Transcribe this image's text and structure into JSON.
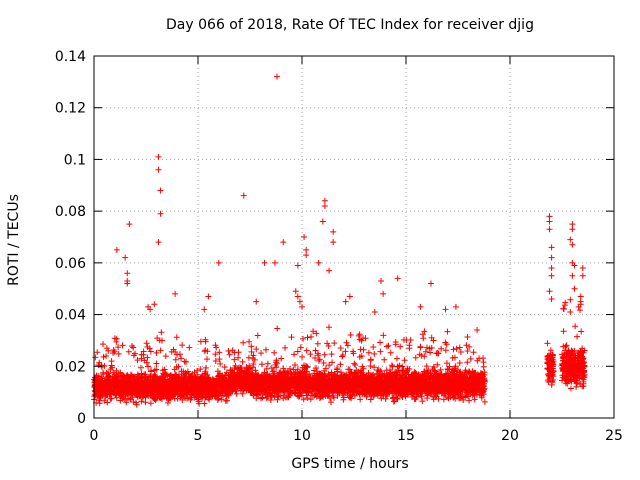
{
  "chart_data": {
    "type": "scatter",
    "title": "Day 066 of 2018, Rate Of TEC Index for receiver djig",
    "xlabel": "GPS time / hours",
    "ylabel": "ROTI / TECUs",
    "xlim": [
      0,
      25
    ],
    "ylim": [
      0,
      0.14
    ],
    "xticks": [
      0,
      5,
      10,
      15,
      20,
      25
    ],
    "yticks": [
      0,
      0.02,
      0.04,
      0.06,
      0.08,
      0.1,
      0.12,
      0.14
    ],
    "xtick_labels": [
      "0",
      "5",
      "10",
      "15",
      "20",
      "25"
    ],
    "ytick_labels": [
      "0",
      "0.02",
      "0.04",
      "0.06",
      "0.08",
      "0.1",
      "0.12",
      "0.14"
    ],
    "grid": true,
    "marker": "+",
    "color": "#ff0000",
    "series": [
      {
        "name": "ROTI",
        "segments": [
          {
            "x_range": [
              0.0,
              6.5
            ],
            "base": 0.012,
            "spread": 0.008
          },
          {
            "x_range": [
              6.5,
              7.5
            ],
            "base": 0.015,
            "spread": 0.007
          },
          {
            "x_range": [
              7.5,
              18.8
            ],
            "base": 0.013,
            "spread": 0.008
          },
          {
            "x_range": [
              21.8,
              22.1
            ],
            "base": 0.02,
            "spread": 0.01
          },
          {
            "x_range": [
              22.5,
              23.6
            ],
            "base": 0.02,
            "spread": 0.012
          }
        ],
        "outliers": [
          [
            8.8,
            0.132
          ],
          [
            3.1,
            0.101
          ],
          [
            3.1,
            0.096
          ],
          [
            3.2,
            0.088
          ],
          [
            3.2,
            0.079
          ],
          [
            7.2,
            0.086
          ],
          [
            3.1,
            0.068
          ],
          [
            1.7,
            0.075
          ],
          [
            1.1,
            0.065
          ],
          [
            1.5,
            0.062
          ],
          [
            1.6,
            0.056
          ],
          [
            1.6,
            0.053
          ],
          [
            1.6,
            0.052
          ],
          [
            6.0,
            0.06
          ],
          [
            5.5,
            0.047
          ],
          [
            3.9,
            0.048
          ],
          [
            5.3,
            0.042
          ],
          [
            7.8,
            0.045
          ],
          [
            8.2,
            0.06
          ],
          [
            8.7,
            0.06
          ],
          [
            9.1,
            0.068
          ],
          [
            9.8,
            0.059
          ],
          [
            10.1,
            0.07
          ],
          [
            10.2,
            0.065
          ],
          [
            10.2,
            0.063
          ],
          [
            10.8,
            0.06
          ],
          [
            11.1,
            0.084
          ],
          [
            11.1,
            0.082
          ],
          [
            11.0,
            0.076
          ],
          [
            11.5,
            0.072
          ],
          [
            11.5,
            0.068
          ],
          [
            11.3,
            0.057
          ],
          [
            12.3,
            0.047
          ],
          [
            12.1,
            0.045
          ],
          [
            13.8,
            0.053
          ],
          [
            13.9,
            0.048
          ],
          [
            14.6,
            0.054
          ],
          [
            15.7,
            0.043
          ],
          [
            16.2,
            0.052
          ],
          [
            16.9,
            0.042
          ],
          [
            17.4,
            0.043
          ],
          [
            9.7,
            0.049
          ],
          [
            9.8,
            0.047
          ],
          [
            9.9,
            0.045
          ],
          [
            10.0,
            0.043
          ],
          [
            13.5,
            0.041
          ],
          [
            2.9,
            0.044
          ],
          [
            2.7,
            0.042
          ],
          [
            2.6,
            0.043
          ],
          [
            21.9,
            0.078
          ],
          [
            21.9,
            0.076
          ],
          [
            21.9,
            0.073
          ],
          [
            22.0,
            0.066
          ],
          [
            22.0,
            0.062
          ],
          [
            22.0,
            0.058
          ],
          [
            22.0,
            0.055
          ],
          [
            21.9,
            0.049
          ],
          [
            22.0,
            0.046
          ],
          [
            23.0,
            0.075
          ],
          [
            23.0,
            0.073
          ],
          [
            22.9,
            0.069
          ],
          [
            23.0,
            0.067
          ],
          [
            23.0,
            0.06
          ],
          [
            23.1,
            0.059
          ],
          [
            23.0,
            0.055
          ],
          [
            23.5,
            0.058
          ],
          [
            23.5,
            0.055
          ],
          [
            23.4,
            0.047
          ],
          [
            23.4,
            0.044
          ],
          [
            23.3,
            0.043
          ],
          [
            23.1,
            0.05
          ],
          [
            22.9,
            0.041
          ]
        ]
      }
    ]
  }
}
